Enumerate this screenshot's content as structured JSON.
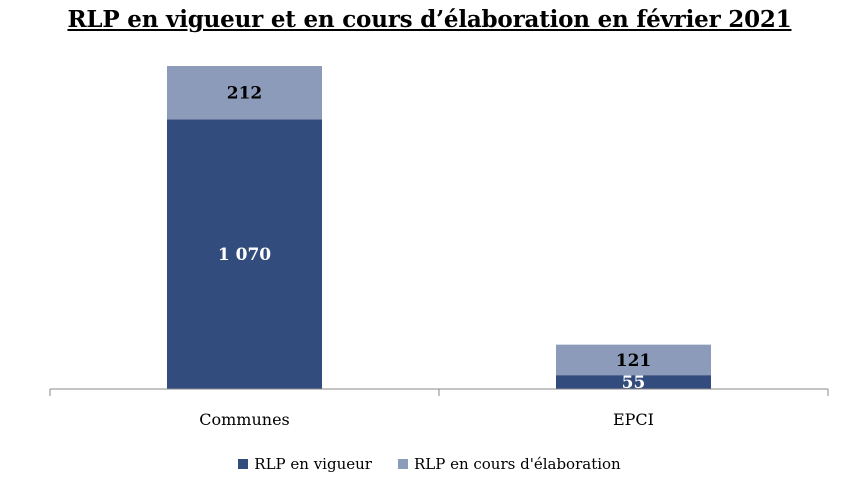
{
  "chart_data": {
    "type": "bar",
    "stacked": true,
    "title": "RLP en vigueur et en cours d’élaboration en février 2021",
    "categories": [
      "Communes",
      "EPCI"
    ],
    "series": [
      {
        "name": "RLP en vigueur",
        "values": [
          1070,
          55
        ],
        "labels": [
          "1 070",
          "55"
        ],
        "color": "#334c7e"
      },
      {
        "name": "RLP en cours d'élaboration",
        "values": [
          212,
          121
        ],
        "labels": [
          "212",
          "121"
        ],
        "color": "#8c9bba"
      }
    ],
    "ylim": [
      0,
      1290
    ],
    "grid": false,
    "legend_position": "bottom"
  }
}
